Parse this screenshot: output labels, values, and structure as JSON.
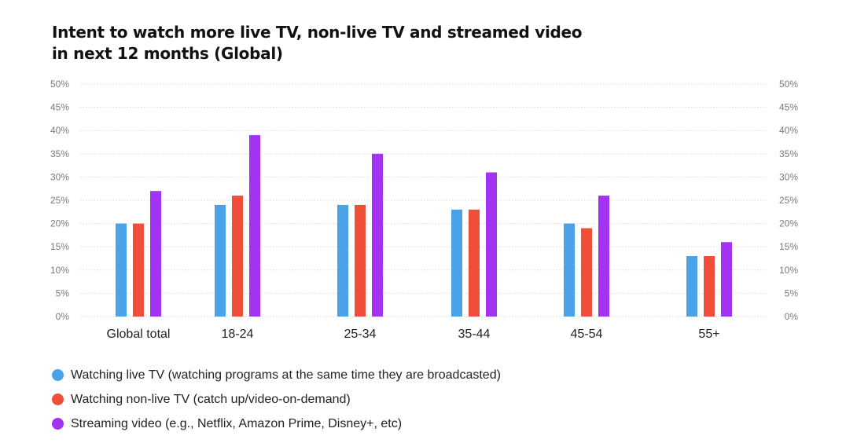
{
  "title": {
    "line1": "Intent to watch more live TV, non-live TV and streamed video",
    "line2": "in next 12 months (Global)"
  },
  "chart_data": {
    "type": "bar",
    "categories": [
      "Global total",
      "18-24",
      "25-34",
      "35-44",
      "45-54",
      "55+"
    ],
    "series": [
      {
        "name": "Watching live TV (watching programs at the same time they are broadcasted)",
        "color": "#4aa3e6",
        "values": [
          20,
          24,
          24,
          23,
          20,
          13
        ]
      },
      {
        "name": "Watching non-live TV (catch up/video-on-demand)",
        "color": "#ef4f38",
        "values": [
          20,
          26,
          24,
          23,
          19,
          13
        ]
      },
      {
        "name": "Streaming video (e.g., Netflix, Amazon Prime, Disney+, etc)",
        "color": "#a233f0",
        "values": [
          27,
          39,
          35,
          31,
          26,
          16
        ]
      }
    ],
    "ylim": [
      0,
      50
    ],
    "yticks": [
      "0%",
      "5%",
      "10%",
      "15%",
      "20%",
      "25%",
      "30%",
      "35%",
      "40%",
      "45%",
      "50%"
    ],
    "y_axis_both_sides": true,
    "grid": true,
    "legend_position": "bottom-left"
  }
}
